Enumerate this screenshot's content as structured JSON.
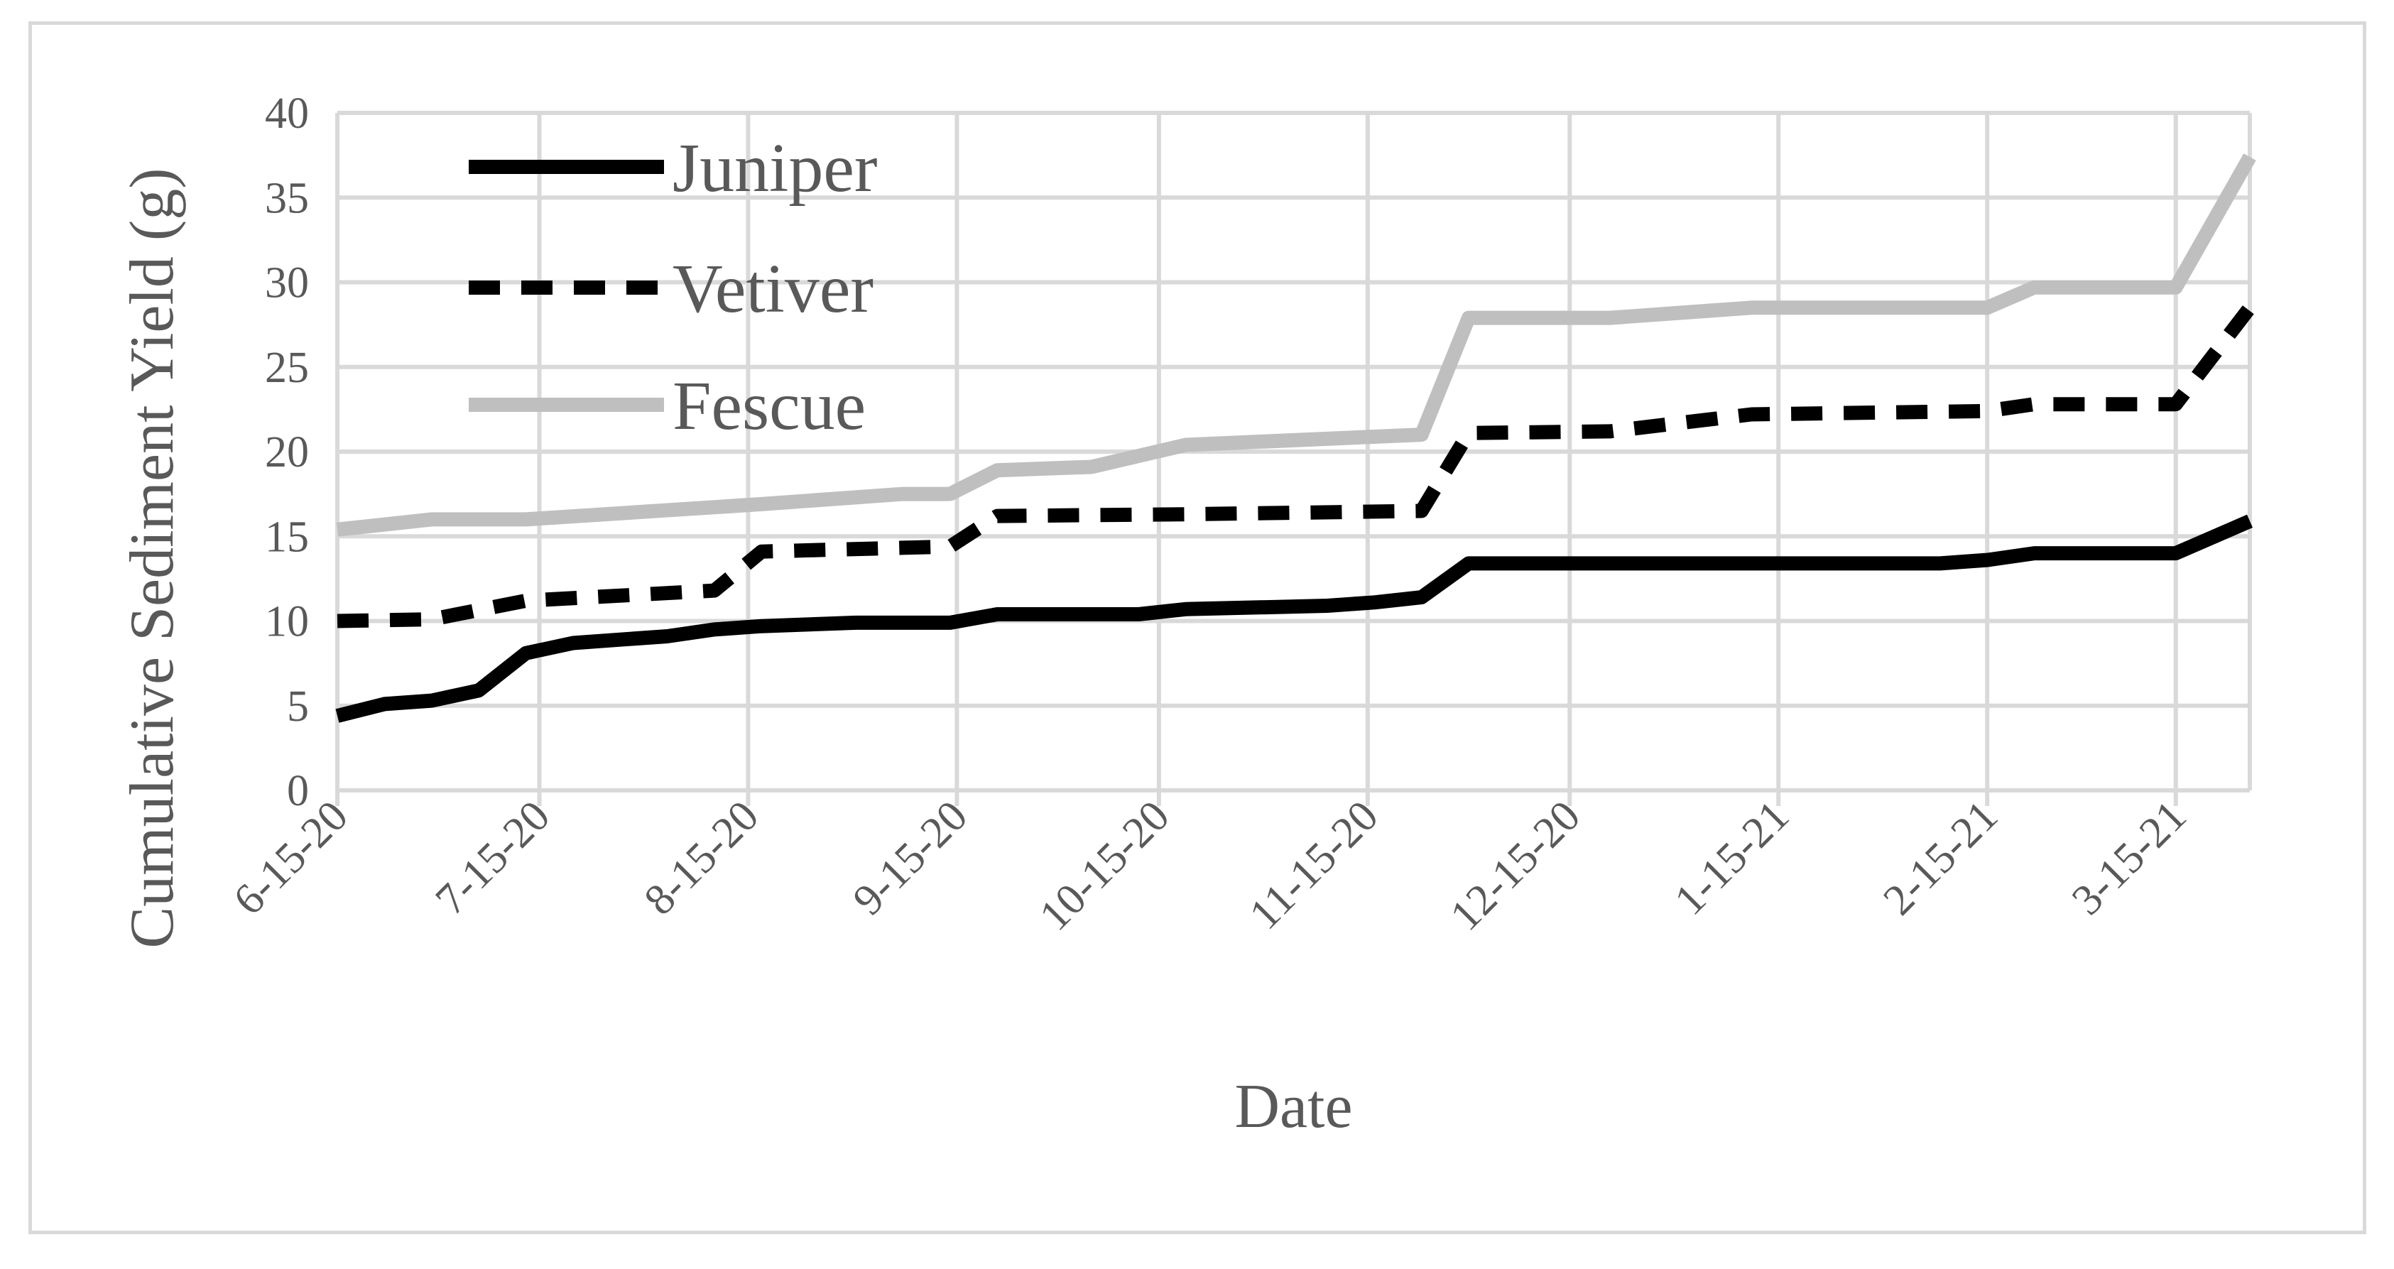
{
  "chart_data": {
    "type": "line",
    "title": "",
    "xlabel": "Date",
    "ylabel": "Cumulative Sediment Yield (g)",
    "x_tick_labels": [
      "6-15-20",
      "7-15-20",
      "8-15-20",
      "9-15-20",
      "10-15-20",
      "11-15-20",
      "12-15-20",
      "1-15-21",
      "2-15-21",
      "3-15-21"
    ],
    "x_tick_dates": [
      "2020-06-15",
      "2020-07-15",
      "2020-08-15",
      "2020-09-15",
      "2020-10-15",
      "2020-11-15",
      "2020-12-15",
      "2021-01-15",
      "2021-02-15",
      "2021-03-15"
    ],
    "xlim": [
      "2020-06-15",
      "2021-03-26"
    ],
    "ylim": [
      0,
      40
    ],
    "y_ticks": [
      0,
      5,
      10,
      15,
      20,
      25,
      30,
      35,
      40
    ],
    "grid": true,
    "legend_position": "top-left",
    "series": [
      {
        "name": "Juniper",
        "color": "#000000",
        "style": "solid",
        "points": [
          {
            "x": "2020-06-15",
            "y": 4.4
          },
          {
            "x": "2020-06-22",
            "y": 5.1
          },
          {
            "x": "2020-06-29",
            "y": 5.3
          },
          {
            "x": "2020-07-06",
            "y": 5.9
          },
          {
            "x": "2020-07-13",
            "y": 8.1
          },
          {
            "x": "2020-07-20",
            "y": 8.7
          },
          {
            "x": "2020-07-27",
            "y": 8.9
          },
          {
            "x": "2020-08-03",
            "y": 9.1
          },
          {
            "x": "2020-08-10",
            "y": 9.5
          },
          {
            "x": "2020-08-17",
            "y": 9.7
          },
          {
            "x": "2020-08-31",
            "y": 9.9
          },
          {
            "x": "2020-09-14",
            "y": 9.9
          },
          {
            "x": "2020-09-21",
            "y": 10.4
          },
          {
            "x": "2020-10-12",
            "y": 10.4
          },
          {
            "x": "2020-10-19",
            "y": 10.7
          },
          {
            "x": "2020-11-09",
            "y": 10.9
          },
          {
            "x": "2020-11-16",
            "y": 11.1
          },
          {
            "x": "2020-11-23",
            "y": 11.4
          },
          {
            "x": "2020-11-30",
            "y": 13.4
          },
          {
            "x": "2021-02-08",
            "y": 13.4
          },
          {
            "x": "2021-02-15",
            "y": 13.6
          },
          {
            "x": "2021-02-22",
            "y": 14.0
          },
          {
            "x": "2021-03-15",
            "y": 14.0
          },
          {
            "x": "2021-03-26",
            "y": 15.9
          }
        ]
      },
      {
        "name": "Vetiver",
        "color": "#000000",
        "style": "dashed",
        "points": [
          {
            "x": "2020-06-15",
            "y": 10.0
          },
          {
            "x": "2020-06-29",
            "y": 10.1
          },
          {
            "x": "2020-07-13",
            "y": 11.2
          },
          {
            "x": "2020-08-10",
            "y": 11.8
          },
          {
            "x": "2020-08-17",
            "y": 14.1
          },
          {
            "x": "2020-09-14",
            "y": 14.4
          },
          {
            "x": "2020-09-21",
            "y": 16.2
          },
          {
            "x": "2020-10-19",
            "y": 16.3
          },
          {
            "x": "2020-11-23",
            "y": 16.5
          },
          {
            "x": "2020-11-30",
            "y": 21.1
          },
          {
            "x": "2020-12-21",
            "y": 21.2
          },
          {
            "x": "2021-01-11",
            "y": 22.2
          },
          {
            "x": "2021-02-15",
            "y": 22.4
          },
          {
            "x": "2021-02-22",
            "y": 22.8
          },
          {
            "x": "2021-03-15",
            "y": 22.8
          },
          {
            "x": "2021-03-26",
            "y": 28.5
          }
        ]
      },
      {
        "name": "Fescue",
        "color": "#bfbfbf",
        "style": "solid",
        "points": [
          {
            "x": "2020-06-15",
            "y": 15.4
          },
          {
            "x": "2020-06-29",
            "y": 16.0
          },
          {
            "x": "2020-07-13",
            "y": 16.0
          },
          {
            "x": "2020-08-17",
            "y": 16.9
          },
          {
            "x": "2020-09-07",
            "y": 17.5
          },
          {
            "x": "2020-09-14",
            "y": 17.5
          },
          {
            "x": "2020-09-21",
            "y": 18.9
          },
          {
            "x": "2020-10-05",
            "y": 19.1
          },
          {
            "x": "2020-10-19",
            "y": 20.4
          },
          {
            "x": "2020-11-23",
            "y": 21.0
          },
          {
            "x": "2020-11-30",
            "y": 27.9
          },
          {
            "x": "2020-12-21",
            "y": 27.9
          },
          {
            "x": "2021-01-11",
            "y": 28.5
          },
          {
            "x": "2021-02-15",
            "y": 28.5
          },
          {
            "x": "2021-02-22",
            "y": 29.7
          },
          {
            "x": "2021-03-15",
            "y": 29.7
          },
          {
            "x": "2021-03-26",
            "y": 37.4
          }
        ]
      }
    ]
  }
}
